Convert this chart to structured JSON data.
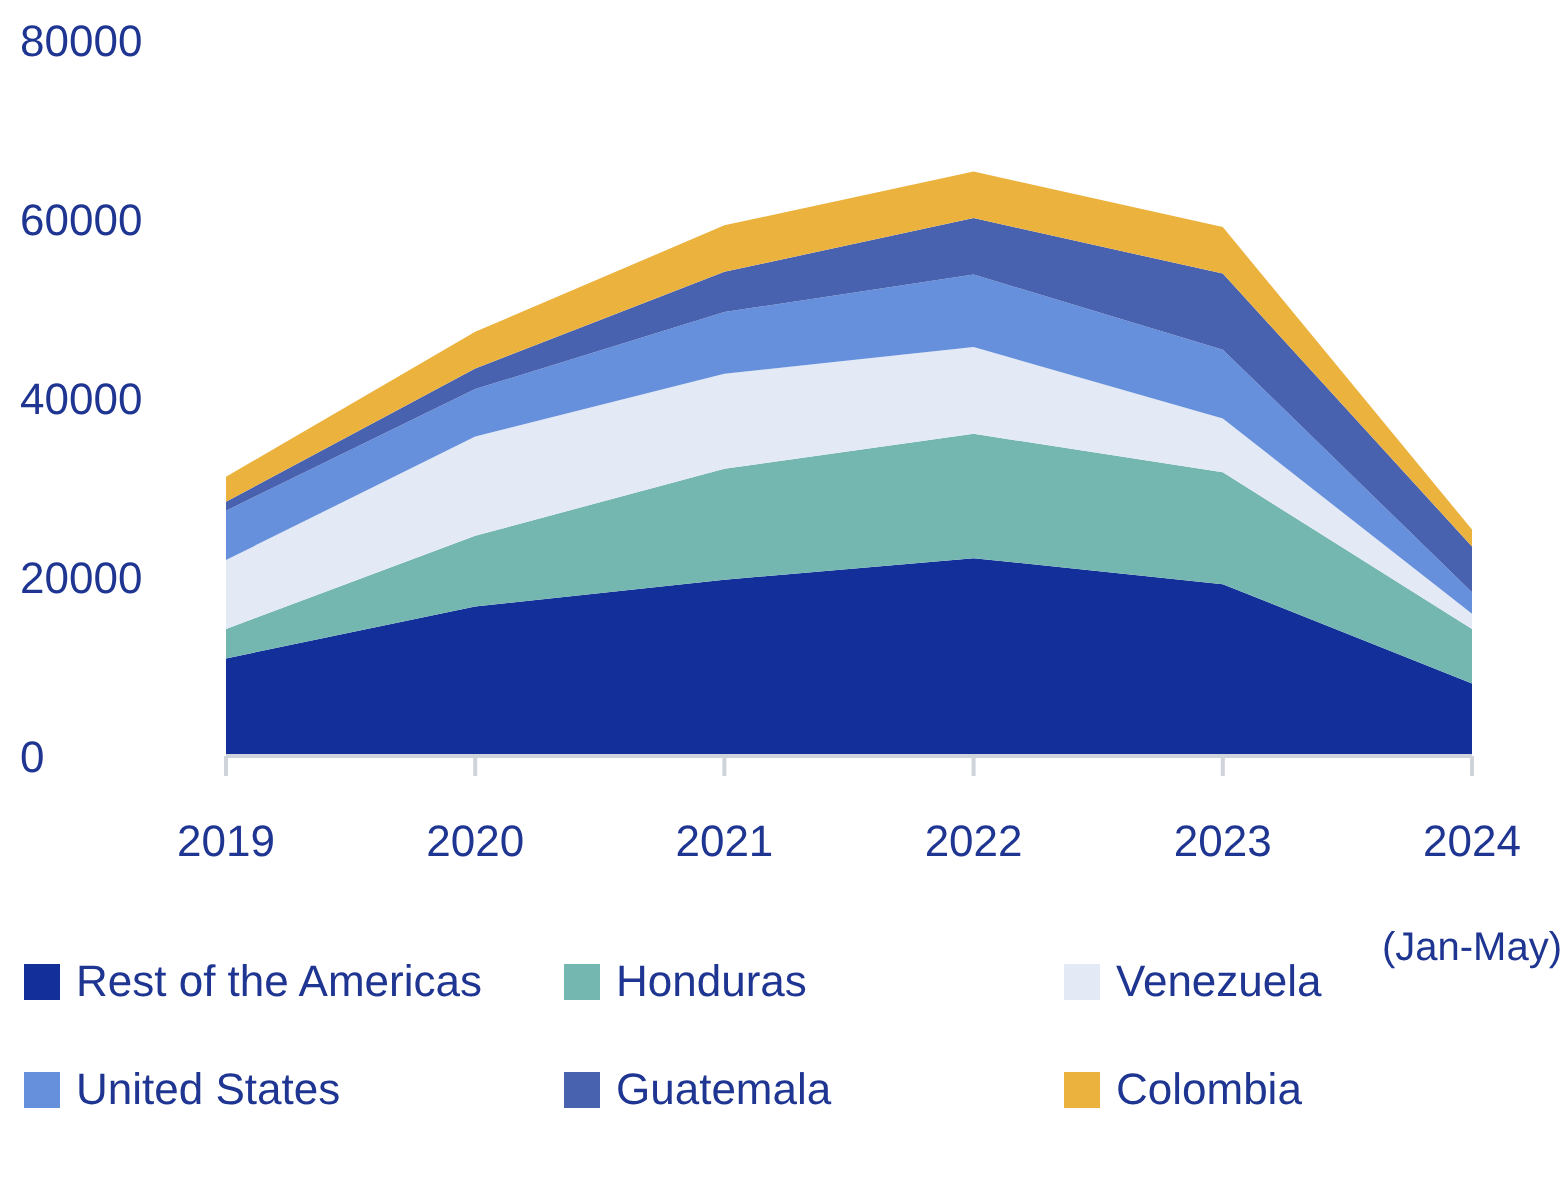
{
  "chart_data": {
    "type": "area",
    "stacked": true,
    "categories": [
      "2019",
      "2020",
      "2021",
      "2022",
      "2023",
      "2024 (Jan-May)"
    ],
    "series": [
      {
        "name": "Rest of the Americas",
        "color": "#13309a",
        "values": [
          10900,
          16700,
          19700,
          22100,
          19200,
          8100
        ]
      },
      {
        "name": "Honduras",
        "color": "#74b6b0",
        "values": [
          3300,
          7900,
          12400,
          13900,
          12500,
          6100
        ]
      },
      {
        "name": "Venezuela",
        "color": "#e3e9f5",
        "values": [
          7700,
          11100,
          10600,
          9700,
          6000,
          1700
        ]
      },
      {
        "name": "United States",
        "color": "#6690dc",
        "values": [
          5500,
          5300,
          6900,
          8100,
          7700,
          2400
        ]
      },
      {
        "name": "Guatemala",
        "color": "#4862b0",
        "values": [
          1000,
          2300,
          4500,
          6300,
          8500,
          5100
        ]
      },
      {
        "name": "Colombia",
        "color": "#ebb33e",
        "values": [
          2800,
          4100,
          5200,
          5200,
          5200,
          1900
        ]
      }
    ],
    "ylim": [
      0,
      80000
    ],
    "yticks": [
      0,
      20000,
      40000,
      60000,
      80000
    ],
    "grid": false,
    "legend": "bottom"
  }
}
